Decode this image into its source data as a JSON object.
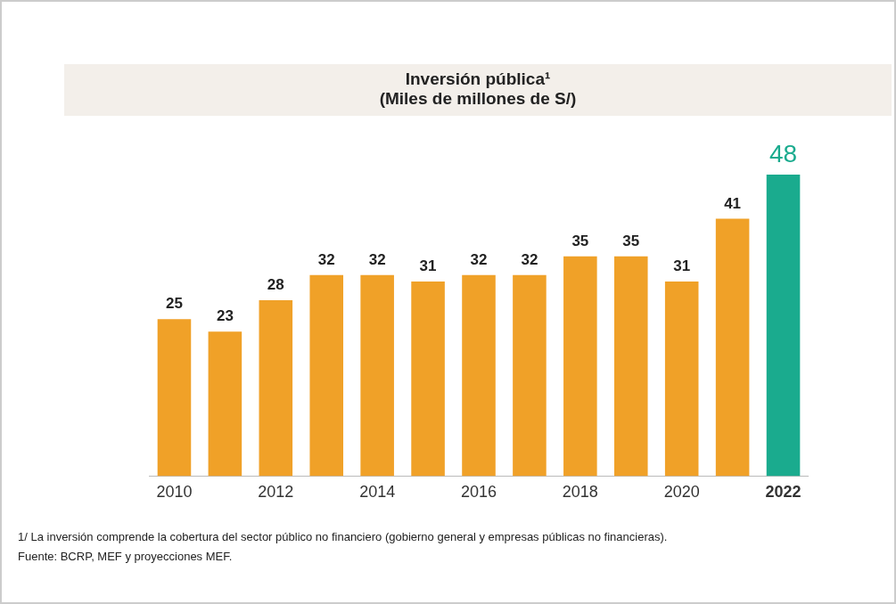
{
  "chart_data": {
    "type": "bar",
    "title": "Inversión pública¹",
    "subtitle": "(Miles de millones de S/)",
    "categories": [
      "2010",
      null,
      "2012",
      null,
      "2014",
      null,
      "2016",
      null,
      "2018",
      null,
      "2020",
      null,
      "2022"
    ],
    "values": [
      25,
      23,
      28,
      32,
      32,
      31,
      32,
      32,
      35,
      35,
      31,
      41,
      48
    ],
    "colors": [
      "#f0a128",
      "#f0a128",
      "#f0a128",
      "#f0a128",
      "#f0a128",
      "#f0a128",
      "#f0a128",
      "#f0a128",
      "#f0a128",
      "#f0a128",
      "#f0a128",
      "#f0a128",
      "#1aab8e"
    ],
    "data_labels": true,
    "grid": false,
    "legend": false,
    "annotations": [
      "1/ La inversión comprende la cobertura del sector público no financiero (gobierno general y empresas públicas no financieras).",
      "Fuente: BCRP, MEF y proyecciones MEF."
    ]
  }
}
